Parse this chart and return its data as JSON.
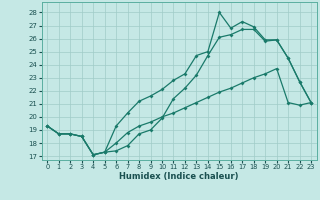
{
  "xlabel": "Humidex (Indice chaleur)",
  "xlim": [
    -0.5,
    23.5
  ],
  "ylim": [
    16.7,
    28.8
  ],
  "yticks": [
    17,
    18,
    19,
    20,
    21,
    22,
    23,
    24,
    25,
    26,
    27,
    28
  ],
  "xticks": [
    0,
    1,
    2,
    3,
    4,
    5,
    6,
    7,
    8,
    9,
    10,
    11,
    12,
    13,
    14,
    15,
    16,
    17,
    18,
    19,
    20,
    21,
    22,
    23
  ],
  "background_color": "#c5e8e5",
  "grid_color": "#a0ccc8",
  "line_color": "#1a7a6a",
  "line1_x": [
    0,
    1,
    2,
    3,
    4,
    5,
    6,
    7,
    8,
    9,
    10,
    11,
    12,
    13,
    14,
    15,
    16,
    17,
    18,
    19,
    20,
    21,
    22,
    23
  ],
  "line1_y": [
    19.3,
    18.7,
    18.7,
    18.5,
    17.1,
    17.3,
    17.4,
    17.8,
    18.7,
    19.0,
    19.9,
    21.4,
    22.2,
    23.2,
    24.7,
    26.1,
    26.3,
    26.7,
    26.7,
    25.8,
    25.9,
    24.5,
    22.7,
    21.1
  ],
  "line2_x": [
    0,
    1,
    2,
    3,
    4,
    5,
    6,
    7,
    8,
    9,
    10,
    11,
    12,
    13,
    14,
    15,
    16,
    17,
    18,
    19,
    20,
    21,
    22,
    23
  ],
  "line2_y": [
    19.3,
    18.7,
    18.7,
    18.5,
    17.1,
    17.3,
    19.3,
    20.3,
    21.2,
    21.6,
    22.1,
    22.8,
    23.3,
    24.7,
    25.0,
    28.0,
    26.8,
    27.3,
    26.9,
    25.9,
    25.9,
    24.5,
    22.7,
    21.1
  ],
  "line3_x": [
    0,
    1,
    2,
    3,
    4,
    5,
    6,
    7,
    8,
    9,
    10,
    11,
    12,
    13,
    14,
    15,
    16,
    17,
    18,
    19,
    20,
    21,
    22,
    23
  ],
  "line3_y": [
    19.3,
    18.7,
    18.7,
    18.5,
    17.1,
    17.3,
    18.0,
    18.8,
    19.3,
    19.6,
    20.0,
    20.3,
    20.7,
    21.1,
    21.5,
    21.9,
    22.2,
    22.6,
    23.0,
    23.3,
    23.7,
    21.1,
    20.9,
    21.1
  ]
}
